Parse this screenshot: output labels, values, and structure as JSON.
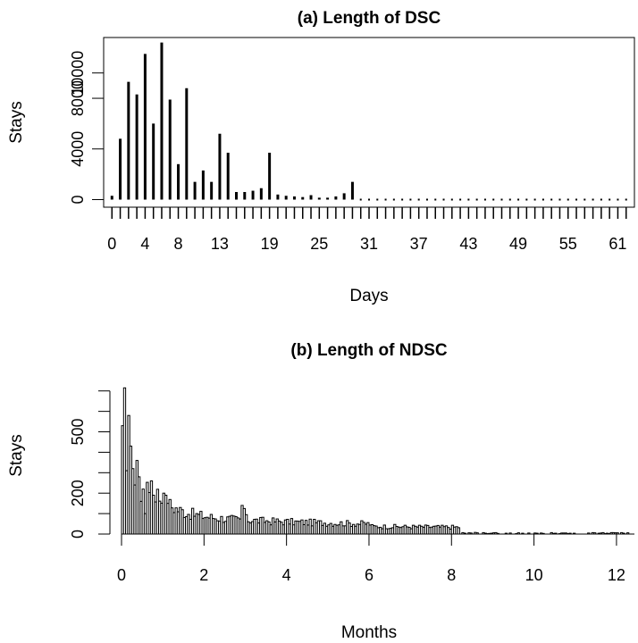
{
  "chart_data": [
    {
      "panel": "a",
      "type": "bar",
      "title": "(a) Length of DSC",
      "xlabel": "Days",
      "ylabel": "Stays",
      "xlim": [
        -1,
        63
      ],
      "ylim": [
        -600,
        12800
      ],
      "yticks": [
        0,
        4000,
        8000,
        10000
      ],
      "ytick_labels": [
        "0",
        "4000",
        "8000",
        "10000"
      ],
      "xtick_labels": [
        "0",
        "4",
        "8",
        "13",
        "19",
        "25",
        "31",
        "37",
        "43",
        "49",
        "55",
        "61"
      ],
      "x": [
        0,
        1,
        2,
        3,
        4,
        5,
        6,
        7,
        8,
        9,
        10,
        11,
        12,
        13,
        14,
        15,
        16,
        17,
        18,
        19,
        20,
        21,
        22,
        23,
        24,
        25,
        26,
        27,
        28,
        29,
        30,
        31,
        32,
        33,
        34,
        35,
        36,
        37,
        38,
        39,
        40,
        41,
        42,
        43,
        44,
        45,
        46,
        47,
        48,
        49,
        50,
        51,
        52,
        53,
        54,
        55,
        56,
        57,
        58,
        59,
        60,
        61,
        62
      ],
      "values": [
        300,
        4800,
        9300,
        8300,
        11500,
        6000,
        12400,
        7900,
        2800,
        8800,
        1400,
        2300,
        1400,
        5200,
        3700,
        600,
        600,
        700,
        900,
        3700,
        400,
        300,
        250,
        200,
        350,
        150,
        150,
        250,
        500,
        1400,
        30,
        20,
        20,
        20,
        20,
        20,
        20,
        20,
        20,
        20,
        20,
        20,
        20,
        20,
        20,
        20,
        20,
        20,
        20,
        20,
        20,
        20,
        20,
        20,
        20,
        20,
        20,
        20,
        20,
        20,
        20,
        20,
        20
      ],
      "grid": false
    },
    {
      "panel": "b",
      "type": "bar",
      "title": "(b) Length of NDSC",
      "xlabel": "Months",
      "ylabel": "Stays",
      "xlim": [
        0,
        12.5
      ],
      "ylim": [
        -30,
        760
      ],
      "yticks": [
        0,
        200,
        500
      ],
      "ytick_labels": [
        "0",
        "200",
        "500"
      ],
      "xticks": [
        0,
        2,
        4,
        6,
        8,
        10,
        12
      ],
      "xtick_labels": [
        "0",
        "2",
        "4",
        "6",
        "8",
        "10",
        "12"
      ],
      "bin_width_months": 0.05,
      "grid": false
    }
  ]
}
